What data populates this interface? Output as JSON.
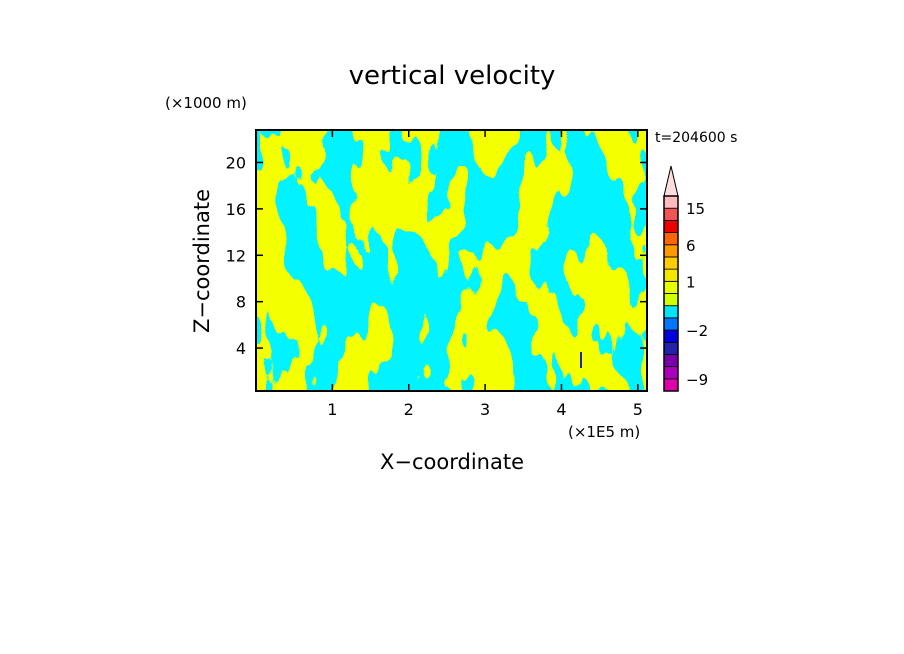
{
  "chart_data": {
    "type": "heatmap",
    "title": "vertical velocity",
    "xlabel": "X−coordinate",
    "ylabel": "Z−coordinate",
    "x_unit": "(×1E5 m)",
    "y_unit": "(×1000 m)",
    "time_label": "t=204600 s",
    "xlim": [
      0,
      5.12
    ],
    "ylim": [
      0.3,
      22.8
    ],
    "x_ticks": [
      1,
      2,
      3,
      4,
      5
    ],
    "y_ticks": [
      4,
      8,
      12,
      16,
      20
    ],
    "x_tick_labels": [
      "1",
      "2",
      "3",
      "4",
      "5"
    ],
    "y_tick_labels": [
      "4",
      "8",
      "12",
      "16",
      "20"
    ],
    "colorbar": {
      "tick_labels": [
        "15",
        "6",
        "1",
        "−2",
        "−9"
      ],
      "tick_values": [
        15,
        6,
        1,
        -2,
        -9
      ],
      "levels": [
        {
          "lo": -12,
          "hi": -9,
          "color": "#dd00aa"
        },
        {
          "lo": -9,
          "hi": -6,
          "color": "#aa00bb"
        },
        {
          "lo": -6,
          "hi": -4,
          "color": "#7700aa"
        },
        {
          "lo": -4,
          "hi": -3,
          "color": "#2222aa"
        },
        {
          "lo": -3,
          "hi": -2,
          "color": "#0000dd"
        },
        {
          "lo": -2,
          "hi": -1,
          "color": "#0077ff"
        },
        {
          "lo": -1,
          "hi": 0,
          "color": "#00e5ff"
        },
        {
          "lo": 0,
          "hi": 0.5,
          "color": "#d2ff00"
        },
        {
          "lo": 0.5,
          "hi": 1,
          "color": "#e6ff00"
        },
        {
          "lo": 1,
          "hi": 2,
          "color": "#f5e600"
        },
        {
          "lo": 2,
          "hi": 3,
          "color": "#ffcc00"
        },
        {
          "lo": 3,
          "hi": 6,
          "color": "#ff9900"
        },
        {
          "lo": 6,
          "hi": 9,
          "color": "#ff6600"
        },
        {
          "lo": 9,
          "hi": 12,
          "color": "#ee0000"
        },
        {
          "lo": 12,
          "hi": 15,
          "color": "#ee5555"
        },
        {
          "lo": 15,
          "hi": 20,
          "color": "#ffbbbb"
        }
      ],
      "overflow_color": "#ffdddd"
    },
    "field_description_colors": {
      "positive": "#e6ff00",
      "negative": "#00e5ff",
      "strong_negative": "#2222cc"
    }
  }
}
